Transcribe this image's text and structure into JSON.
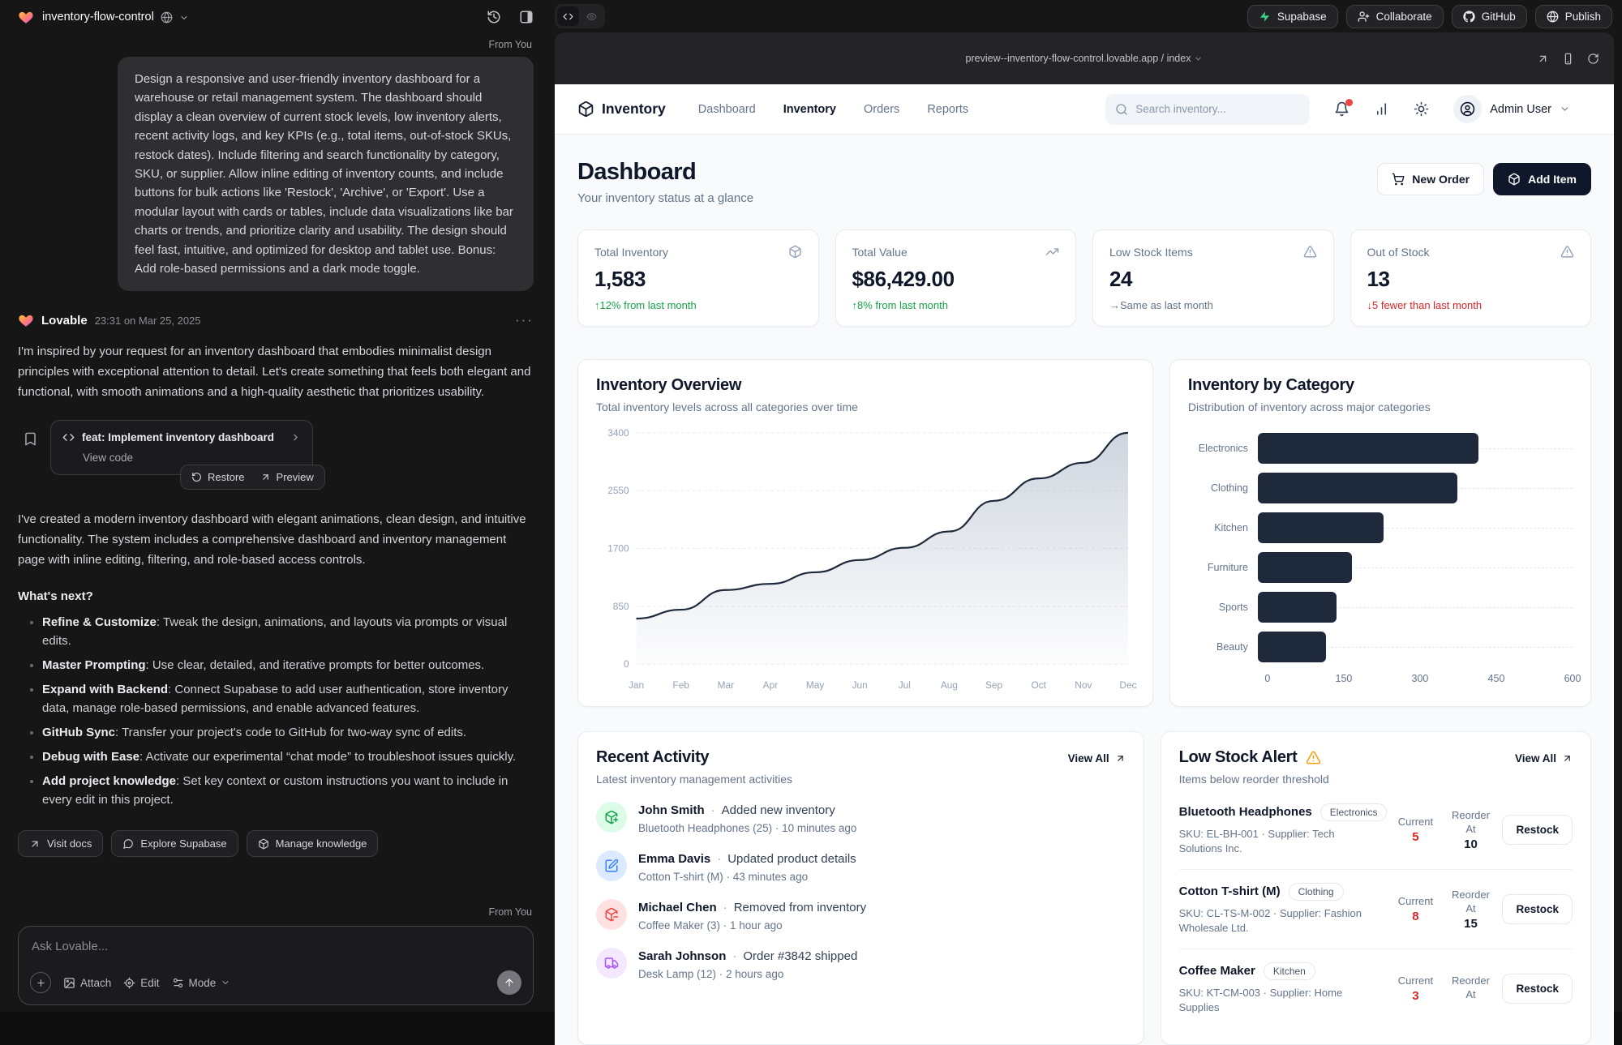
{
  "chat": {
    "project_name": "inventory-flow-control",
    "from_you_label": "From You",
    "user_message": "Design a responsive and user-friendly inventory dashboard for a warehouse or retail management system. The dashboard should display a clean overview of current stock levels, low inventory alerts, recent activity logs, and key KPIs (e.g., total items, out-of-stock SKUs, restock dates). Include filtering and search functionality by category, SKU, or supplier. Allow inline editing of inventory counts, and include buttons for bulk actions like 'Restock', 'Archive', or 'Export'. Use a modular layout with cards or tables, include data visualizations like bar charts or trends, and prioritize clarity and usability. The design should feel fast, intuitive, and optimized for desktop and tablet use. Bonus: Add role-based permissions and a dark mode toggle.",
    "assistant": {
      "name": "Lovable",
      "timestamp": "23:31 on Mar 25, 2025",
      "intro": "I'm inspired by your request for an inventory dashboard that embodies minimalist design principles with exceptional attention to detail. Let's create something that feels both elegant and functional, with smooth animations and a high-quality aesthetic that prioritizes usability.",
      "commit_title": "feat: Implement inventory dashboard",
      "view_code": "View code",
      "restore": "Restore",
      "preview": "Preview",
      "summary": "I've created a modern inventory dashboard with elegant animations, clean design, and intuitive functionality. The system includes a comprehensive dashboard and inventory management page with inline editing, filtering, and role-based access controls.",
      "whats_next": "What's next?",
      "bullets": [
        {
          "title": "Refine & Customize",
          "text": ": Tweak the design, animations, and layouts via prompts or visual edits."
        },
        {
          "title": "Master Prompting",
          "text": ": Use clear, detailed, and iterative prompts for better outcomes."
        },
        {
          "title": "Expand with Backend",
          "text": ": Connect Supabase to add user authentication, store inventory data, manage role-based permissions, and enable advanced features."
        },
        {
          "title": "GitHub Sync",
          "text": ": Transfer your project's code to GitHub for two-way sync of edits."
        },
        {
          "title": "Debug with Ease",
          "text": ": Activate our experimental “chat mode” to troubleshoot issues quickly."
        },
        {
          "title": "Add project knowledge",
          "text": ": Set key context or custom instructions you want to include in every edit in this project."
        }
      ],
      "footer": {
        "visit_docs": "Visit docs",
        "explore_supabase": "Explore Supabase",
        "manage_knowledge": "Manage knowledge"
      }
    },
    "composer": {
      "placeholder": "Ask Lovable...",
      "attach": "Attach",
      "edit": "Edit",
      "mode": "Mode"
    }
  },
  "topbar": {
    "supabase": "Supabase",
    "collaborate": "Collaborate",
    "github": "GitHub",
    "publish": "Publish"
  },
  "preview_frame": {
    "url_display": "preview--inventory-flow-control.lovable.app / index"
  },
  "app": {
    "nav": {
      "brand": "Inventory",
      "links": [
        {
          "label": "Dashboard",
          "active": false
        },
        {
          "label": "Inventory",
          "active": true
        },
        {
          "label": "Orders",
          "active": false
        },
        {
          "label": "Reports",
          "active": false
        }
      ],
      "search_placeholder": "Search inventory...",
      "user": "Admin User"
    },
    "header": {
      "title": "Dashboard",
      "subtitle": "Your inventory status at a glance",
      "new_order": "New Order",
      "add_item": "Add Item"
    },
    "kpis": [
      {
        "label": "Total Inventory",
        "icon": "package",
        "value": "1,583",
        "delta_arrow": "↑",
        "delta": "12% from last month",
        "delta_tone": "green"
      },
      {
        "label": "Total Value",
        "icon": "trending-up",
        "value": "$86,429.00",
        "delta_arrow": "↑",
        "delta": "8% from last month",
        "delta_tone": "green"
      },
      {
        "label": "Low Stock Items",
        "icon": "alert-triangle",
        "value": "24",
        "delta_arrow": "→",
        "delta": "Same as last month",
        "delta_tone": "grey"
      },
      {
        "label": "Out of Stock",
        "icon": "alert-triangle",
        "value": "13",
        "delta_arrow": "↓",
        "delta": "5 fewer than last month",
        "delta_tone": "red"
      }
    ],
    "activity": {
      "title": "Recent Activity",
      "subtitle": "Latest inventory management activities",
      "view_all": "View All",
      "items": [
        {
          "icon": "package-plus",
          "tone": "green",
          "user": "John Smith",
          "action": "Added new inventory",
          "detail": "Bluetooth Headphones (25)",
          "time": "10 minutes ago"
        },
        {
          "icon": "edit",
          "tone": "blue",
          "user": "Emma Davis",
          "action": "Updated product details",
          "detail": "Cotton T-shirt (M)",
          "time": "43 minutes ago"
        },
        {
          "icon": "package-minus",
          "tone": "red",
          "user": "Michael Chen",
          "action": "Removed from inventory",
          "detail": "Coffee Maker (3)",
          "time": "1 hour ago"
        },
        {
          "icon": "truck",
          "tone": "purple",
          "user": "Sarah Johnson",
          "action": "Order #3842 shipped",
          "detail": "Desk Lamp (12)",
          "time": "2 hours ago"
        }
      ]
    },
    "low_stock": {
      "title": "Low Stock Alert",
      "subtitle": "Items below reorder threshold",
      "view_all": "View All",
      "current_label": "Current",
      "reorder_label": "Reorder At",
      "restock_label": "Restock",
      "items": [
        {
          "name": "Bluetooth Headphones",
          "category": "Electronics",
          "sku_line": "SKU: EL-BH-001 · Supplier: Tech Solutions Inc.",
          "current": "5",
          "reorder_at": "10"
        },
        {
          "name": "Cotton T-shirt (M)",
          "category": "Clothing",
          "sku_line": "SKU: CL-TS-M-002 · Supplier: Fashion Wholesale Ltd.",
          "current": "8",
          "reorder_at": "15"
        },
        {
          "name": "Coffee Maker",
          "category": "Kitchen",
          "sku_line": "SKU: KT-CM-003 · Supplier: Home Supplies",
          "current": "3",
          "reorder_at": ""
        }
      ]
    }
  },
  "chart_data": [
    {
      "type": "area",
      "title": "Inventory Overview",
      "subtitle": "Total inventory levels across all categories over time",
      "x": [
        "Jan",
        "Feb",
        "Mar",
        "Apr",
        "May",
        "Jun",
        "Jul",
        "Aug",
        "Sep",
        "Oct",
        "Nov",
        "Dec"
      ],
      "values": [
        670,
        800,
        1090,
        1180,
        1350,
        1530,
        1710,
        1950,
        2400,
        2730,
        2960,
        3400
      ],
      "ylim": [
        0,
        3400
      ],
      "yticks": [
        0,
        850,
        1700,
        2550,
        3400
      ],
      "grid": "horizontal-dashed",
      "line_color": "#1e293b",
      "fill": "grey-gradient"
    },
    {
      "type": "bar",
      "orientation": "horizontal",
      "title": "Inventory by Category",
      "subtitle": "Distribution of inventory across major categories",
      "categories": [
        "Electronics",
        "Clothing",
        "Kitchen",
        "Furniture",
        "Sports",
        "Beauty"
      ],
      "values": [
        420,
        380,
        240,
        180,
        150,
        130
      ],
      "xlim": [
        0,
        600
      ],
      "xticks": [
        0,
        150,
        300,
        450,
        600
      ],
      "bar_color": "#1e293b",
      "legend": false
    }
  ]
}
